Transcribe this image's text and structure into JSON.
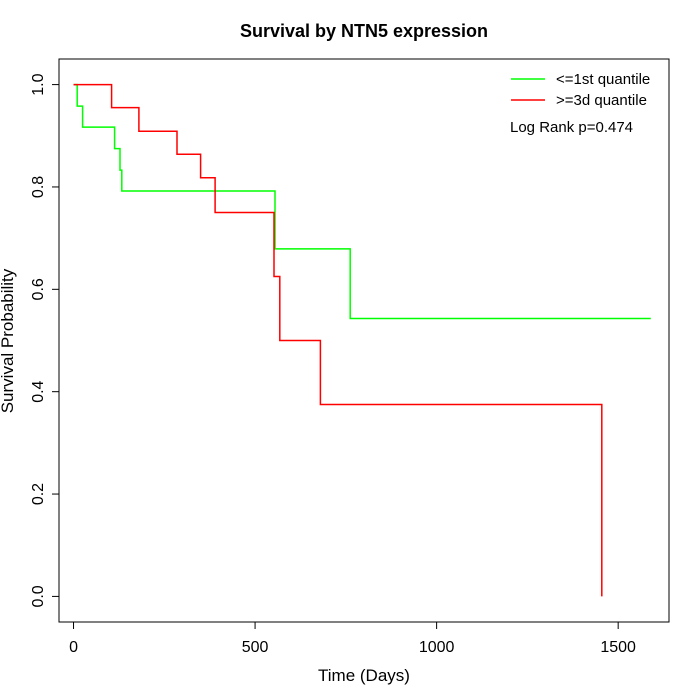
{
  "chart_data": {
    "type": "line",
    "step": true,
    "title": "Survival by NTN5 expression",
    "xlabel": "Time (Days)",
    "ylabel": "Survival Probability",
    "xlim": [
      -40,
      1640
    ],
    "ylim": [
      -0.05,
      1.05
    ],
    "xticks": [
      0,
      500,
      1000,
      1500
    ],
    "xtick_labels": [
      "0",
      "500",
      "1000",
      "1500"
    ],
    "yticks": [
      0,
      0.2,
      0.4,
      0.6,
      0.8,
      1
    ],
    "ytick_labels": [
      "0.0",
      "0.2",
      "0.4",
      "0.6",
      "0.8",
      "1.0"
    ],
    "grid": false,
    "legend_position": "top-right",
    "annotation": "Log Rank p=0.474",
    "series": [
      {
        "name": "<=1st quantile",
        "color": "#00ff00",
        "points": [
          [
            0,
            1.0
          ],
          [
            10,
            0.958
          ],
          [
            25,
            0.917
          ],
          [
            113,
            0.875
          ],
          [
            128,
            0.833
          ],
          [
            133,
            0.792
          ],
          [
            555,
            0.679
          ],
          [
            762,
            0.543
          ],
          [
            1590,
            0.543
          ]
        ]
      },
      {
        "name": ">=3d quantile",
        "color": "#ff0000",
        "points": [
          [
            0,
            1.0
          ],
          [
            105,
            0.955
          ],
          [
            180,
            0.909
          ],
          [
            285,
            0.864
          ],
          [
            350,
            0.818
          ],
          [
            390,
            0.75
          ],
          [
            552,
            0.625
          ],
          [
            568,
            0.5
          ],
          [
            680,
            0.375
          ],
          [
            1455,
            0.375
          ],
          [
            1455,
            0.0
          ]
        ]
      }
    ]
  }
}
